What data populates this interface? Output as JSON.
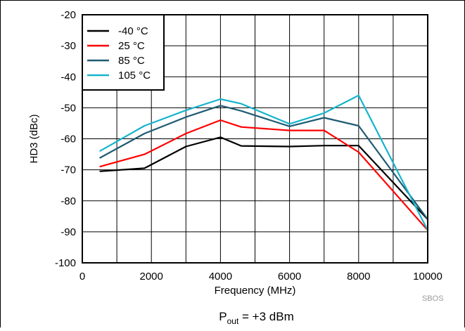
{
  "chart_data": {
    "type": "line",
    "xlabel": "Frequency (MHz)",
    "ylabel": "HD3 (dBc)",
    "xlim": [
      0,
      10000
    ],
    "ylim": [
      -100,
      -20
    ],
    "xticks": [
      0,
      2000,
      4000,
      6000,
      8000,
      10000
    ],
    "yticks": [
      -20,
      -30,
      -40,
      -50,
      -60,
      -70,
      -80,
      -90,
      -100
    ],
    "grid": true,
    "legend_position": "top-left",
    "series": [
      {
        "name": "-40 °C",
        "color": "#000000",
        "x": [
          500,
          1800,
          3000,
          4000,
          4600,
          6000,
          7000,
          8000,
          10000
        ],
        "y": [
          -70.5,
          -69.5,
          -62.5,
          -59.5,
          -62.3,
          -62.5,
          -62.2,
          -62.2,
          -86
        ]
      },
      {
        "name": "25 °C",
        "color": "#ff0000",
        "x": [
          500,
          1800,
          3000,
          4000,
          4600,
          6000,
          7000,
          8000,
          10000
        ],
        "y": [
          -69,
          -65,
          -58.3,
          -54,
          -56.2,
          -57.3,
          -57.3,
          -64.3,
          -89.5
        ]
      },
      {
        "name": "85 °C",
        "color": "#1f5b73",
        "x": [
          500,
          1800,
          3000,
          4000,
          4600,
          6000,
          7000,
          8000,
          10000
        ],
        "y": [
          -66.2,
          -58.3,
          -53,
          -49.3,
          -51,
          -56,
          -53.2,
          -55.8,
          -86
        ]
      },
      {
        "name": "105 °C",
        "color": "#16b4cc",
        "x": [
          500,
          1800,
          3000,
          4000,
          4600,
          6000,
          7000,
          8000,
          10000
        ],
        "y": [
          -64,
          -55.8,
          -50.8,
          -47.2,
          -48.7,
          -55.2,
          -51.7,
          -46,
          -89.5
        ]
      }
    ]
  },
  "footer": {
    "watermark": "SBOS",
    "caption_main": "P",
    "caption_sub": "out",
    "caption_rest": " = +3 dBm"
  }
}
